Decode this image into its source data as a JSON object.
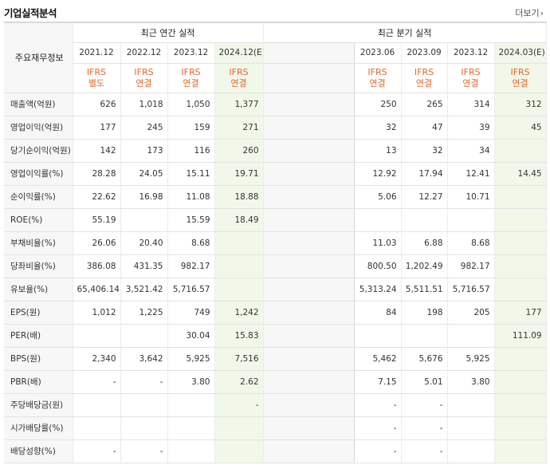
{
  "header": {
    "title": "기업실적분석",
    "more_label": "더보기"
  },
  "table": {
    "row_header_label": "주요재무정보",
    "annual_label": "최근 연간 실적",
    "quarterly_label": "최근 분기 실적",
    "annual_periods": [
      "2021.12",
      "2022.12",
      "2023.12",
      "2024.12(E)"
    ],
    "quarterly_periods": [
      "2023.06",
      "2023.09",
      "2023.12",
      "2024.03(E)"
    ],
    "annual_types": [
      [
        "IFRS",
        "별도"
      ],
      [
        "IFRS",
        "연결"
      ],
      [
        "IFRS",
        "연결"
      ],
      [
        "IFRS",
        "연결"
      ]
    ],
    "quarterly_types": [
      [
        "IFRS",
        "연결"
      ],
      [
        "IFRS",
        "연결"
      ],
      [
        "IFRS",
        "연결"
      ],
      [
        "IFRS",
        "연결"
      ]
    ],
    "rows": [
      {
        "label": "매출액(억원)",
        "annual": [
          "626",
          "1,018",
          "1,050",
          "1,377"
        ],
        "quarterly": [
          "250",
          "265",
          "314",
          "312"
        ],
        "group_start": true
      },
      {
        "label": "영업이익(억원)",
        "annual": [
          "177",
          "245",
          "159",
          "271"
        ],
        "quarterly": [
          "32",
          "47",
          "39",
          "45"
        ]
      },
      {
        "label": "당기순이익(억원)",
        "annual": [
          "142",
          "173",
          "116",
          "260"
        ],
        "quarterly": [
          "13",
          "32",
          "34",
          ""
        ]
      },
      {
        "label": "영업이익률(%)",
        "annual": [
          "28.28",
          "24.05",
          "15.11",
          "19.71"
        ],
        "quarterly": [
          "12.92",
          "17.94",
          "12.41",
          "14.45"
        ],
        "group_start": true
      },
      {
        "label": "순이익률(%)",
        "annual": [
          "22.62",
          "16.98",
          "11.08",
          "18.88"
        ],
        "quarterly": [
          "5.06",
          "12.27",
          "10.71",
          ""
        ]
      },
      {
        "label": "ROE(%)",
        "annual": [
          "55.19",
          "",
          "15.59",
          "18.49"
        ],
        "quarterly": [
          "",
          "",
          "",
          ""
        ]
      },
      {
        "label": "부채비율(%)",
        "annual": [
          "26.06",
          "20.40",
          "8.68",
          ""
        ],
        "quarterly": [
          "11.03",
          "6.88",
          "8.68",
          ""
        ],
        "group_start": true
      },
      {
        "label": "당좌비율(%)",
        "annual": [
          "386.08",
          "431.35",
          "982.17",
          ""
        ],
        "quarterly": [
          "800.50",
          "1,202.49",
          "982.17",
          ""
        ]
      },
      {
        "label": "유보율(%)",
        "annual": [
          "65,406.14",
          "3,521.42",
          "5,716.57",
          ""
        ],
        "quarterly": [
          "5,313.24",
          "5,511.51",
          "5,716.57",
          ""
        ]
      },
      {
        "label": "EPS(원)",
        "annual": [
          "1,012",
          "1,225",
          "749",
          "1,242"
        ],
        "quarterly": [
          "84",
          "198",
          "205",
          "177"
        ],
        "group_start": true
      },
      {
        "label": "PER(배)",
        "annual": [
          "",
          "",
          "30.04",
          "15.83"
        ],
        "quarterly": [
          "",
          "",
          "",
          "111.09"
        ]
      },
      {
        "label": "BPS(원)",
        "annual": [
          "2,340",
          "3,642",
          "5,925",
          "7,516"
        ],
        "quarterly": [
          "5,462",
          "5,676",
          "5,925",
          ""
        ]
      },
      {
        "label": "PBR(배)",
        "annual": [
          "-",
          "-",
          "3.80",
          "2.62"
        ],
        "quarterly": [
          "7.15",
          "5.01",
          "3.80",
          ""
        ]
      },
      {
        "label": "주당배당금(원)",
        "annual": [
          "",
          "",
          "",
          "-"
        ],
        "quarterly": [
          "-",
          "-",
          "",
          ""
        ],
        "group_start": true
      },
      {
        "label": "시가배당률(%)",
        "annual": [
          "",
          "",
          "",
          ""
        ],
        "quarterly": [
          "-",
          "-",
          "",
          ""
        ]
      },
      {
        "label": "배당성향(%)",
        "annual": [
          "-",
          "-",
          "",
          ""
        ],
        "quarterly": [
          "-",
          "-",
          "",
          ""
        ]
      }
    ]
  },
  "colors": {
    "accent_orange": "#e8662a",
    "estimate_bg": "#f1f8ea",
    "label_bg": "#f7f7f7"
  }
}
